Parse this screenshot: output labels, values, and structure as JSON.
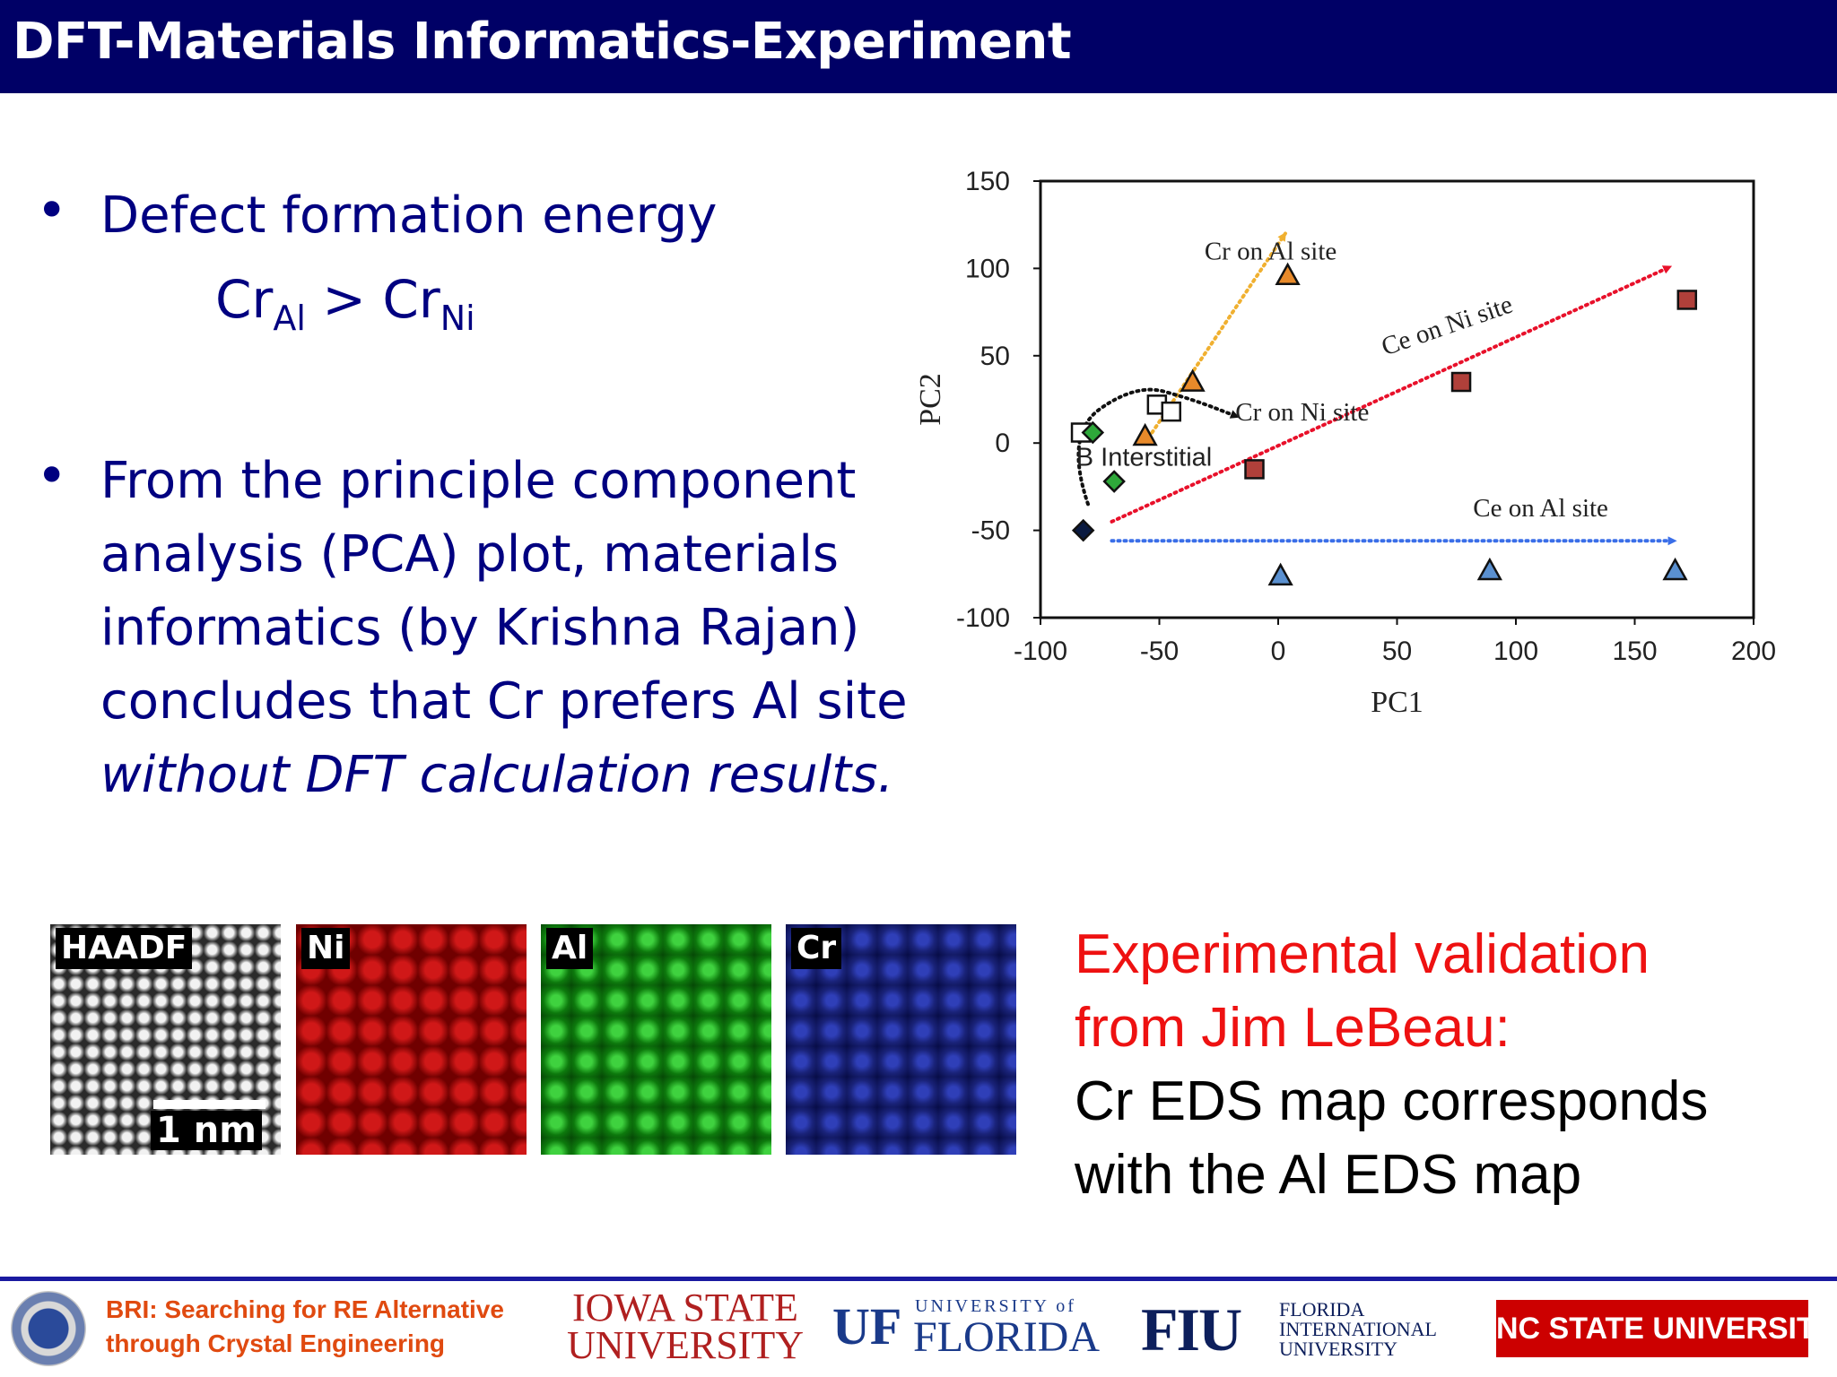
{
  "slide": {
    "title": "DFT-Materials Informatics-Experiment",
    "bullets": [
      {
        "marker": "•",
        "text": "Defect formation energy"
      },
      {
        "marker": "•",
        "lines": [
          "From the principle component",
          "analysis (PCA) plot, materials",
          "informatics (by Krishna Rajan)",
          "concludes that Cr prefers Al site"
        ],
        "italic_line": "without DFT calculation results."
      }
    ],
    "formula": {
      "left": "Cr",
      "left_sub": "Al",
      "op": " > ",
      "right": "Cr",
      "right_sub": "Ni"
    }
  },
  "chart_data": {
    "type": "scatter",
    "xlabel": "PC1",
    "ylabel": "PC2",
    "xlim": [
      -100,
      200
    ],
    "ylim": [
      -100,
      150
    ],
    "xticks": [
      -100,
      -50,
      0,
      50,
      100,
      150,
      200
    ],
    "yticks": [
      -100,
      -50,
      0,
      50,
      100,
      150
    ],
    "annotations": [
      {
        "text": "Cr on Al site",
        "x": -31,
        "y": 105,
        "font": "serif"
      },
      {
        "text": "Ce on Ni site",
        "x": 45,
        "y": 50,
        "rotate": -19,
        "font": "serif"
      },
      {
        "text": "Cr on Ni site",
        "x": -18,
        "y": 13,
        "font": "serif"
      },
      {
        "text": "B Interstitial",
        "x": -85,
        "y": -13,
        "font": "sans"
      },
      {
        "text": "Ce on Al site",
        "x": 82,
        "y": -42,
        "font": "serif"
      }
    ],
    "points": [
      {
        "x": -82,
        "y": -50,
        "shape": "diamond",
        "color": "#0a1a40"
      },
      {
        "x": -83,
        "y": 6,
        "shape": "open-square",
        "color": "#ffffff"
      },
      {
        "x": -78,
        "y": 6,
        "shape": "diamond",
        "color": "#2ea83a"
      },
      {
        "x": -69,
        "y": -22,
        "shape": "diamond",
        "color": "#2ea83a"
      },
      {
        "x": -56,
        "y": 4,
        "shape": "triangle",
        "color": "#e88a2a"
      },
      {
        "x": -51,
        "y": 22,
        "shape": "open-square",
        "color": "#ffffff"
      },
      {
        "x": -45,
        "y": 18,
        "shape": "open-square",
        "color": "#ffffff"
      },
      {
        "x": -36,
        "y": 35,
        "shape": "triangle",
        "color": "#e88a2a"
      },
      {
        "x": 4,
        "y": 96,
        "shape": "triangle",
        "color": "#e88a2a"
      },
      {
        "x": -10,
        "y": -15,
        "shape": "square",
        "color": "#b0403a"
      },
      {
        "x": 77,
        "y": 35,
        "shape": "square",
        "color": "#b0403a"
      },
      {
        "x": 172,
        "y": 82,
        "shape": "square",
        "color": "#b0403a"
      },
      {
        "x": 1,
        "y": -76,
        "shape": "triangle",
        "color": "#5a90d0"
      },
      {
        "x": 89,
        "y": -73,
        "shape": "triangle",
        "color": "#5a90d0"
      },
      {
        "x": 167,
        "y": -73,
        "shape": "triangle",
        "color": "#5a90d0"
      }
    ],
    "arrows": [
      {
        "from": [
          -56,
          0
        ],
        "to": [
          3,
          120
        ],
        "color": "#f0b030",
        "style": "dotted"
      },
      {
        "from": [
          -70,
          -45
        ],
        "to": [
          165,
          101
        ],
        "color": "#e8102a",
        "style": "dotted"
      },
      {
        "from": [
          -70,
          -56
        ],
        "to": [
          167,
          -56
        ],
        "color": "#3a6ee8",
        "style": "dotted"
      },
      {
        "path": [
          [
            -80,
            -35
          ],
          [
            -90,
            5
          ],
          [
            -60,
            34
          ],
          [
            -36,
            25
          ],
          [
            -17,
            15
          ]
        ],
        "color": "#111111",
        "style": "dotted"
      }
    ]
  },
  "eds_maps": [
    {
      "label": "HAADF",
      "scale_label": "1 nm"
    },
    {
      "label": "Ni"
    },
    {
      "label": "Al"
    },
    {
      "label": "Cr"
    }
  ],
  "validation": {
    "red_lines": [
      "Experimental validation",
      "from Jim LeBeau:"
    ],
    "black_lines": [
      "Cr EDS map corresponds",
      "with the Al EDS map"
    ],
    "red_color": "#ee1111"
  },
  "footer": {
    "bri_lines": [
      "BRI:  Searching for RE Alternative",
      "through  Crystal Engineering"
    ],
    "logos": {
      "isu": [
        "IOWA STATE",
        "UNIVERSITY"
      ],
      "uf_mark": "UF",
      "uf_small": "UNIVERSITY of",
      "uf_big": "FLORIDA",
      "fiu_mark": "FIU",
      "fiu_text": [
        "FLORIDA",
        "INTERNATIONAL",
        "UNIVERSITY"
      ],
      "ncsu": "NC STATE UNIVERSITY"
    }
  }
}
